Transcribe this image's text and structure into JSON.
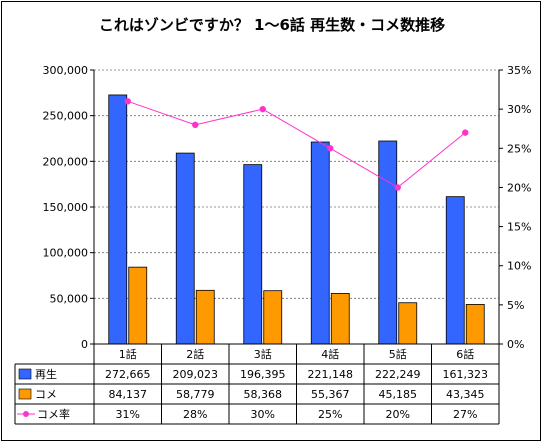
{
  "chart_data": {
    "type": "bar",
    "title": "これはゾンビですか？ 1～6話 再生数・コメ数推移",
    "categories": [
      "1話",
      "2話",
      "3話",
      "4話",
      "5話",
      "6話"
    ],
    "series": [
      {
        "name": "再生",
        "kind": "bar",
        "axis": "left",
        "color": "#3366ff",
        "values": [
          272665,
          209023,
          196395,
          221148,
          222249,
          161323
        ],
        "labels": [
          "272,665",
          "209,023",
          "196,395",
          "221,148",
          "222,249",
          "161,323"
        ]
      },
      {
        "name": "コメ",
        "kind": "bar",
        "axis": "left",
        "color": "#ff9900",
        "values": [
          84137,
          58779,
          58368,
          55367,
          45185,
          43345
        ],
        "labels": [
          "84,137",
          "58,779",
          "58,368",
          "55,367",
          "45,185",
          "43,345"
        ]
      },
      {
        "name": "コメ率",
        "kind": "line",
        "axis": "right",
        "color": "#ff33cc",
        "values": [
          31,
          28,
          30,
          25,
          20,
          27
        ],
        "labels": [
          "31%",
          "28%",
          "30%",
          "25%",
          "20%",
          "27%"
        ]
      }
    ],
    "y_left": {
      "min": 0,
      "max": 300000,
      "step": 50000,
      "ticks": [
        "0",
        "50,000",
        "100,000",
        "150,000",
        "200,000",
        "250,000",
        "300,000"
      ]
    },
    "y_right": {
      "min": 0,
      "max": 35,
      "step": 5,
      "ticks": [
        "0%",
        "5%",
        "10%",
        "15%",
        "20%",
        "25%",
        "30%",
        "35%"
      ]
    },
    "grid": true,
    "legend": "data-table"
  }
}
